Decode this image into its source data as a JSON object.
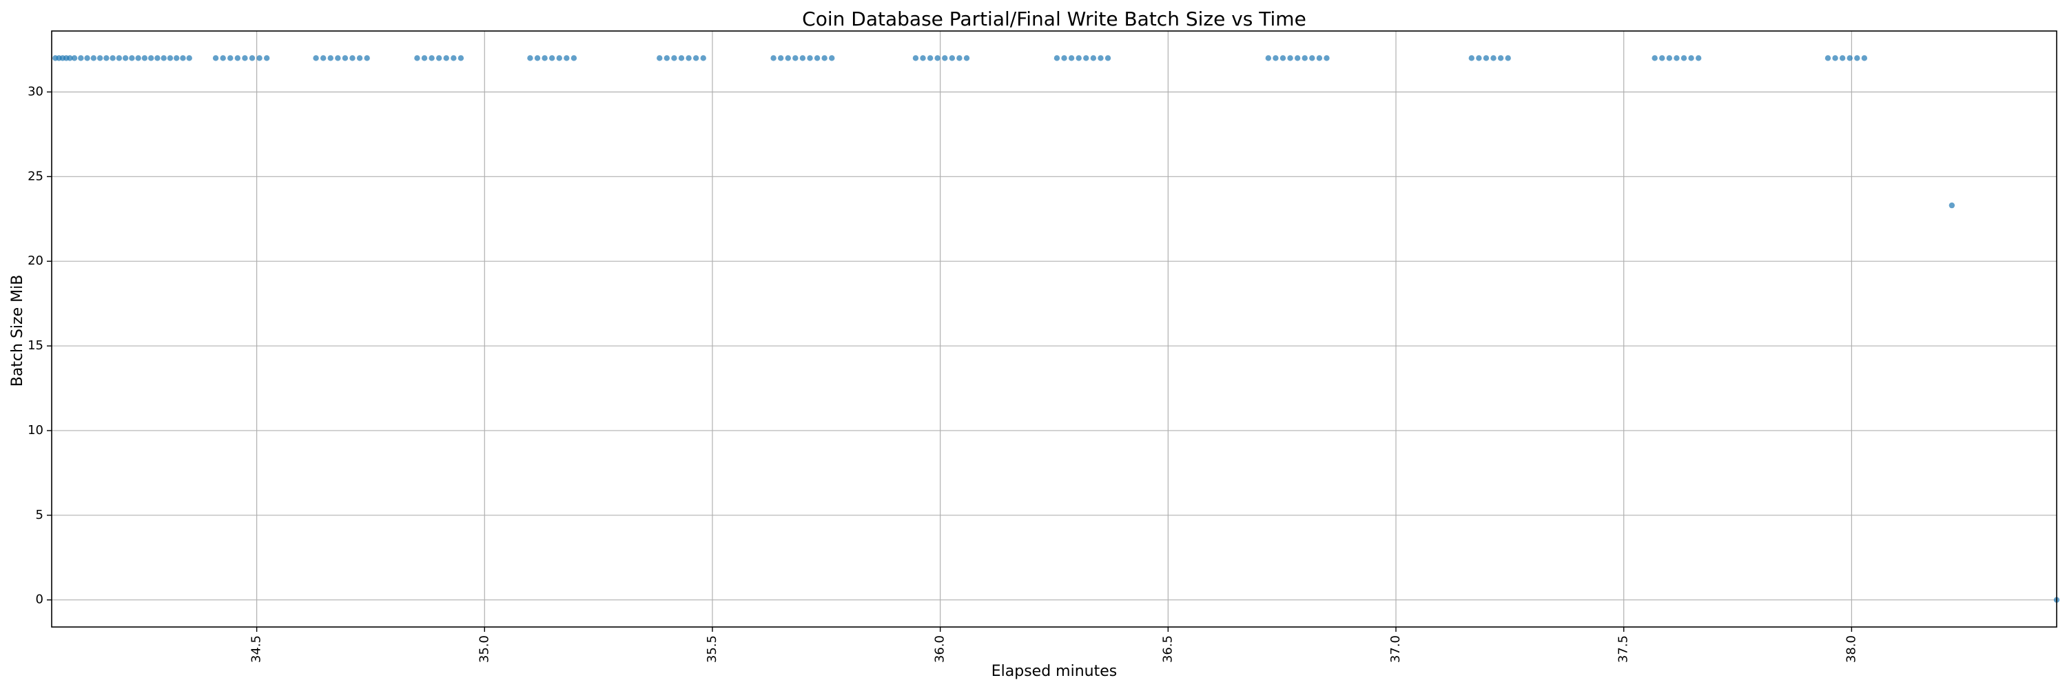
{
  "chart_data": {
    "type": "scatter",
    "title": "Coin Database Partial/Final Write Batch Size vs Time",
    "xlabel": "Elapsed minutes",
    "ylabel": "Batch Size MiB",
    "xlim": [
      34.05,
      38.45
    ],
    "ylim": [
      -1.6,
      33.6
    ],
    "xticks": [
      34.5,
      35.0,
      35.5,
      36.0,
      36.5,
      37.0,
      37.5,
      38.0
    ],
    "xtick_labels": [
      "34.5",
      "35.0",
      "35.5",
      "36.0",
      "36.5",
      "37.0",
      "37.5",
      "38.0"
    ],
    "yticks": [
      0,
      5,
      10,
      15,
      20,
      25,
      30
    ],
    "ytick_labels": [
      "0",
      "5",
      "10",
      "15",
      "20",
      "25",
      "30"
    ],
    "grid": true,
    "marker_color": "#1f77b4",
    "series": [
      {
        "x": [
          34.058,
          34.066,
          34.074,
          34.082,
          34.09,
          34.1,
          34.114,
          34.128,
          34.142,
          34.156,
          34.17,
          34.184,
          34.198,
          34.212,
          34.226,
          34.24,
          34.254,
          34.268,
          34.282,
          34.296,
          34.31,
          34.324,
          34.338,
          34.352,
          34.41,
          34.426,
          34.442,
          34.458,
          34.474,
          34.49,
          34.506,
          34.522,
          34.63,
          34.646,
          34.662,
          34.678,
          34.694,
          34.71,
          34.726,
          34.742,
          34.852,
          34.868,
          34.884,
          34.9,
          34.916,
          34.932,
          34.948,
          35.1,
          35.116,
          35.132,
          35.148,
          35.164,
          35.18,
          35.196,
          35.384,
          35.4,
          35.416,
          35.432,
          35.448,
          35.464,
          35.48,
          35.634,
          35.65,
          35.666,
          35.682,
          35.698,
          35.714,
          35.73,
          35.746,
          35.762,
          35.946,
          35.962,
          35.978,
          35.994,
          36.01,
          36.026,
          36.042,
          36.058,
          36.256,
          36.272,
          36.288,
          36.304,
          36.32,
          36.336,
          36.352,
          36.368,
          36.72,
          36.736,
          36.752,
          36.768,
          36.784,
          36.8,
          36.816,
          36.832,
          36.848,
          37.166,
          37.182,
          37.198,
          37.214,
          37.23,
          37.246,
          37.568,
          37.584,
          37.6,
          37.616,
          37.632,
          37.648,
          37.664,
          37.948,
          37.964,
          37.98,
          37.996,
          38.012,
          38.028,
          38.22,
          38.45
        ],
        "y": [
          32,
          32,
          32,
          32,
          32,
          32,
          32,
          32,
          32,
          32,
          32,
          32,
          32,
          32,
          32,
          32,
          32,
          32,
          32,
          32,
          32,
          32,
          32,
          32,
          32,
          32,
          32,
          32,
          32,
          32,
          32,
          32,
          32,
          32,
          32,
          32,
          32,
          32,
          32,
          32,
          32,
          32,
          32,
          32,
          32,
          32,
          32,
          32,
          32,
          32,
          32,
          32,
          32,
          32,
          32,
          32,
          32,
          32,
          32,
          32,
          32,
          32,
          32,
          32,
          32,
          32,
          32,
          32,
          32,
          32,
          32,
          32,
          32,
          32,
          32,
          32,
          32,
          32,
          32,
          32,
          32,
          32,
          32,
          32,
          32,
          32,
          32,
          32,
          32,
          32,
          32,
          32,
          32,
          32,
          32,
          32,
          32,
          32,
          32,
          32,
          32,
          32,
          32,
          32,
          32,
          32,
          32,
          32,
          32,
          32,
          32,
          32,
          32,
          32,
          23.3,
          0
        ]
      }
    ]
  }
}
